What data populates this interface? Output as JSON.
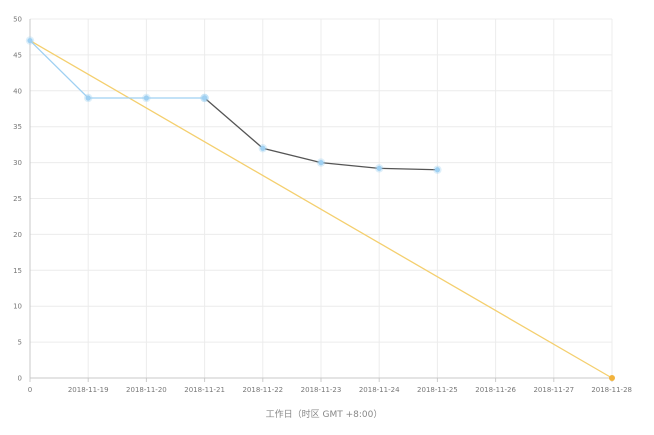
{
  "chart_data": {
    "type": "line",
    "title": "",
    "xlabel": "工作日（时区 GMT +8:00）",
    "ylabel": "",
    "x_ticks": [
      "0",
      "2018-11-19",
      "2018-11-20",
      "2018-11-21",
      "2018-11-22",
      "2018-11-23",
      "2018-11-24",
      "2018-11-25",
      "2018-11-26",
      "2018-11-27",
      "2018-11-28"
    ],
    "ylim": [
      0,
      50
    ],
    "y_ticks": [
      0,
      5,
      10,
      15,
      20,
      25,
      30,
      35,
      40,
      45,
      50
    ],
    "grid": true,
    "legend": "none",
    "series": [
      {
        "x": [
          "0",
          "2018-11-19",
          "2018-11-20",
          "2018-11-21"
        ],
        "values": [
          47,
          39,
          39,
          39
        ],
        "color": "#9fd0f2"
      },
      {
        "x": [
          "2018-11-21",
          "2018-11-22",
          "2018-11-23",
          "2018-11-24",
          "2018-11-25"
        ],
        "values": [
          39,
          32,
          30,
          29.2,
          29
        ],
        "color": "#555555",
        "point_color": "#9fd0f2"
      },
      {
        "x": [
          "0",
          "2018-11-28"
        ],
        "values": [
          47,
          0
        ],
        "color": "#f4cf6e"
      }
    ]
  }
}
